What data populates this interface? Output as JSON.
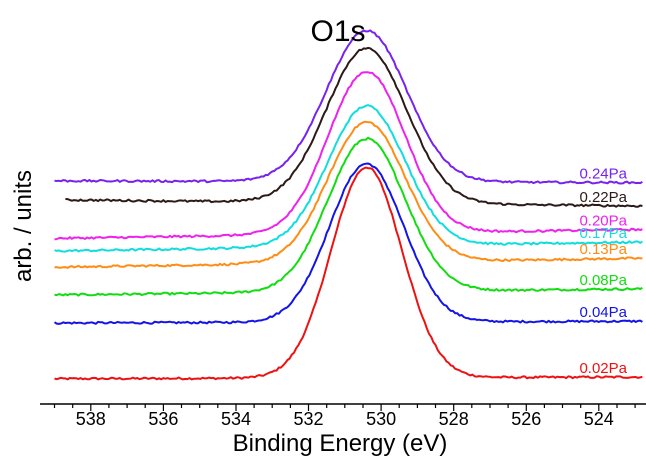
{
  "chart_data": {
    "type": "line",
    "title": "O1s",
    "xlabel": "Binding Energy (eV)",
    "ylabel": "arb. / units",
    "x_reversed": true,
    "xlim": [
      539.4,
      522.7
    ],
    "ylim": [
      0,
      100
    ],
    "y_ticks_shown": false,
    "grid": false,
    "legend": "labels at right end of each trace",
    "x_ticks": [
      538,
      536,
      534,
      532,
      530,
      528,
      526,
      524
    ],
    "peak_center_eV": 530.4,
    "series": [
      {
        "name": "0.02Pa",
        "color": "#ee1111",
        "x_start": 539.0,
        "baseline_left": 7.0,
        "baseline_right": 7.5,
        "peak_height": 58.5,
        "fwhm_eV": 2.3
      },
      {
        "name": "0.04Pa",
        "color": "#1414e6",
        "x_start": 539.0,
        "baseline_left": 22.5,
        "baseline_right": 23.0,
        "peak_height": 44.0,
        "fwhm_eV": 2.4
      },
      {
        "name": "0.08Pa",
        "color": "#11dd11",
        "x_start": 539.0,
        "baseline_left": 30.3,
        "baseline_right": 32.0,
        "peak_height": 42.5,
        "fwhm_eV": 2.5
      },
      {
        "name": "0.13Pa",
        "color": "#ff8c14",
        "x_start": 539.0,
        "baseline_left": 38.0,
        "baseline_right": 40.5,
        "peak_height": 39.0,
        "fwhm_eV": 2.5
      },
      {
        "name": "0.17Pa",
        "color": "#11dddd",
        "x_start": 539.0,
        "baseline_left": 42.5,
        "baseline_right": 45.0,
        "peak_height": 39.0,
        "fwhm_eV": 2.5
      },
      {
        "name": "0.20Pa",
        "color": "#ee22ee",
        "x_start": 539.0,
        "baseline_left": 46.0,
        "baseline_right": 48.5,
        "peak_height": 45.0,
        "fwhm_eV": 2.5
      },
      {
        "name": "0.22Pa",
        "color": "#2b1a17",
        "x_start": 538.7,
        "baseline_left": 56.7,
        "baseline_right": 55.0,
        "peak_height": 43.0,
        "fwhm_eV": 2.6
      },
      {
        "name": "0.24Pa",
        "color": "#7722ee",
        "x_start": 539.0,
        "baseline_left": 62.0,
        "baseline_right": 61.5,
        "peak_height": 42.0,
        "fwhm_eV": 2.6
      }
    ]
  }
}
